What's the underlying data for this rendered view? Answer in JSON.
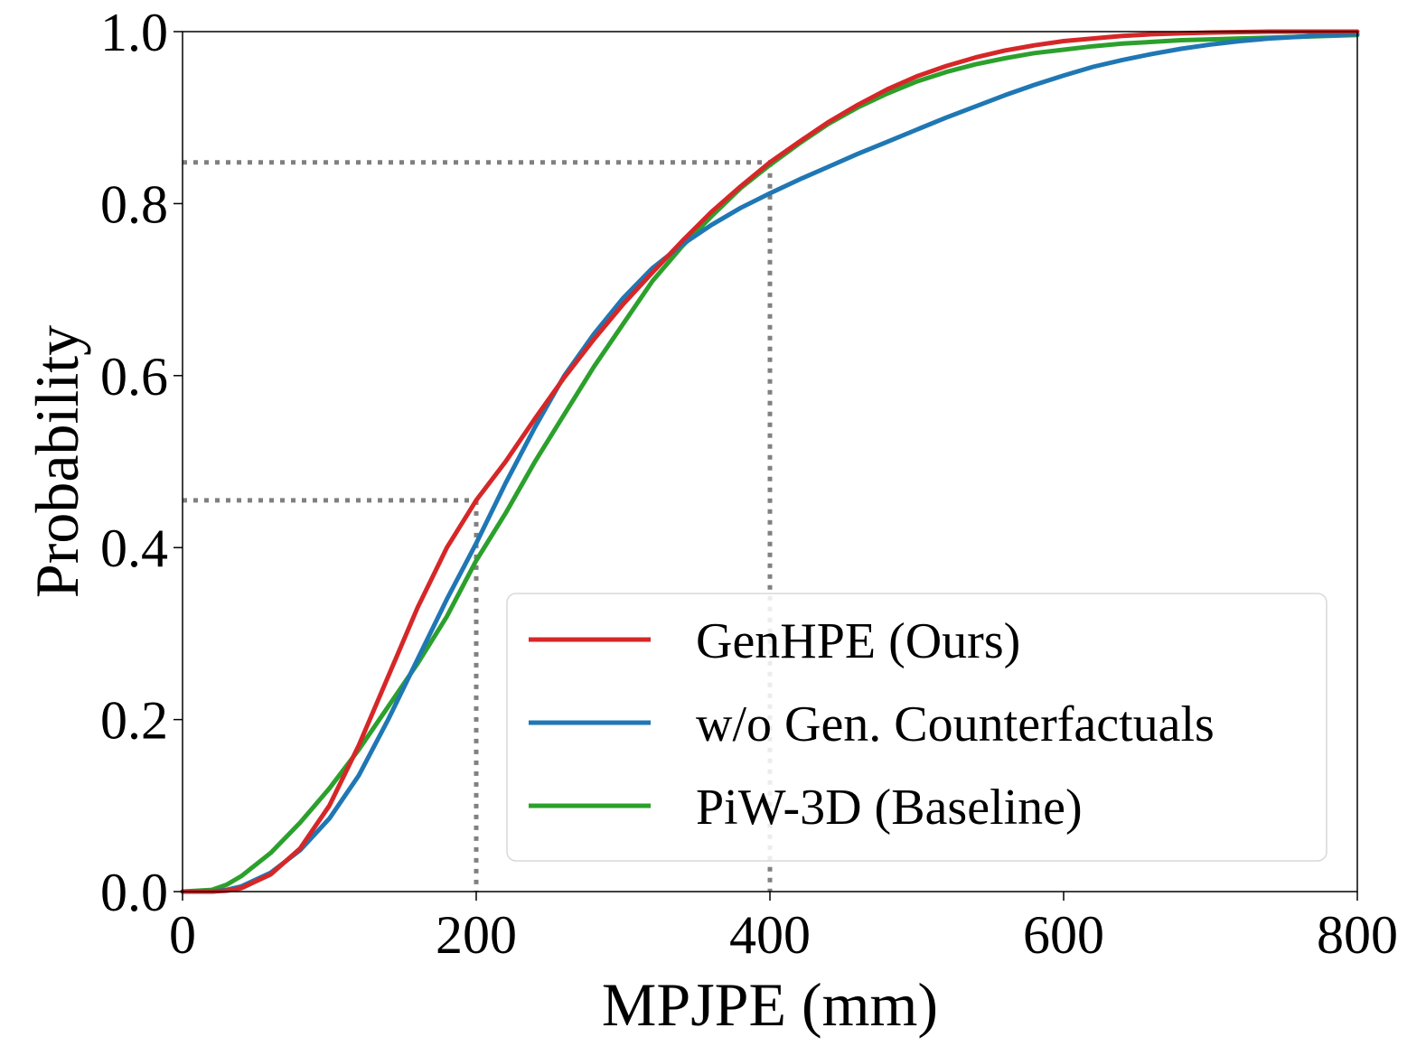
{
  "chart_data": {
    "type": "line",
    "title": "",
    "xlabel": "MPJPE (mm)",
    "ylabel": "Probability",
    "xlim": [
      0,
      800
    ],
    "ylim": [
      0.0,
      1.0
    ],
    "xticks": [
      "0",
      "200",
      "400",
      "600",
      "800"
    ],
    "yticks": [
      "0.0",
      "0.2",
      "0.4",
      "0.6",
      "0.8",
      "1.0"
    ],
    "grid": false,
    "legend_position": "lower-right",
    "series": [
      {
        "name": "GenHPE (Ours)",
        "color": "#d62728",
        "x": [
          0,
          20,
          30,
          40,
          60,
          80,
          100,
          120,
          140,
          160,
          180,
          200,
          220,
          240,
          260,
          280,
          300,
          320,
          340,
          360,
          380,
          400,
          420,
          440,
          460,
          480,
          500,
          520,
          540,
          560,
          580,
          600,
          620,
          640,
          660,
          680,
          700,
          720,
          740,
          760,
          780,
          800
        ],
        "y": [
          0.0,
          0.0,
          0.001,
          0.004,
          0.02,
          0.05,
          0.1,
          0.17,
          0.25,
          0.33,
          0.4,
          0.455,
          0.5,
          0.55,
          0.598,
          0.642,
          0.683,
          0.72,
          0.756,
          0.79,
          0.82,
          0.848,
          0.872,
          0.895,
          0.915,
          0.933,
          0.948,
          0.96,
          0.97,
          0.978,
          0.984,
          0.989,
          0.992,
          0.995,
          0.997,
          0.998,
          0.999,
          0.9995,
          1.0,
          1.0,
          1.0,
          1.0
        ]
      },
      {
        "name": "w/o Gen. Counterfactuals",
        "color": "#1f77b4",
        "x": [
          0,
          20,
          30,
          40,
          60,
          80,
          100,
          120,
          140,
          160,
          180,
          200,
          220,
          240,
          260,
          280,
          300,
          320,
          340,
          360,
          380,
          400,
          420,
          440,
          460,
          480,
          500,
          520,
          540,
          560,
          580,
          600,
          620,
          640,
          660,
          680,
          700,
          720,
          740,
          760,
          780,
          800
        ],
        "y": [
          0.0,
          0.0,
          0.002,
          0.006,
          0.022,
          0.048,
          0.085,
          0.135,
          0.2,
          0.27,
          0.34,
          0.405,
          0.475,
          0.54,
          0.6,
          0.648,
          0.69,
          0.725,
          0.752,
          0.775,
          0.795,
          0.812,
          0.828,
          0.843,
          0.858,
          0.872,
          0.886,
          0.9,
          0.913,
          0.926,
          0.938,
          0.949,
          0.959,
          0.967,
          0.974,
          0.98,
          0.985,
          0.989,
          0.992,
          0.994,
          0.996,
          0.997
        ]
      },
      {
        "name": "PiW-3D (Baseline)",
        "color": "#2ca02c",
        "x": [
          0,
          20,
          30,
          40,
          60,
          80,
          100,
          120,
          140,
          160,
          180,
          200,
          220,
          240,
          260,
          280,
          300,
          320,
          340,
          360,
          380,
          400,
          420,
          440,
          460,
          480,
          500,
          520,
          540,
          560,
          580,
          600,
          620,
          640,
          660,
          680,
          700,
          720,
          740,
          760,
          780,
          800
        ],
        "y": [
          0.0,
          0.002,
          0.008,
          0.018,
          0.045,
          0.08,
          0.12,
          0.165,
          0.215,
          0.265,
          0.32,
          0.385,
          0.44,
          0.5,
          0.555,
          0.61,
          0.66,
          0.71,
          0.75,
          0.785,
          0.818,
          0.845,
          0.87,
          0.893,
          0.912,
          0.928,
          0.942,
          0.953,
          0.962,
          0.969,
          0.975,
          0.979,
          0.983,
          0.986,
          0.988,
          0.99,
          0.991,
          0.992,
          0.993,
          0.994,
          0.995,
          0.996
        ]
      }
    ],
    "reference_lines": [
      {
        "x": 200,
        "y": 0.455,
        "color": "#808080"
      },
      {
        "x": 400,
        "y": 0.848,
        "color": "#808080"
      }
    ]
  }
}
